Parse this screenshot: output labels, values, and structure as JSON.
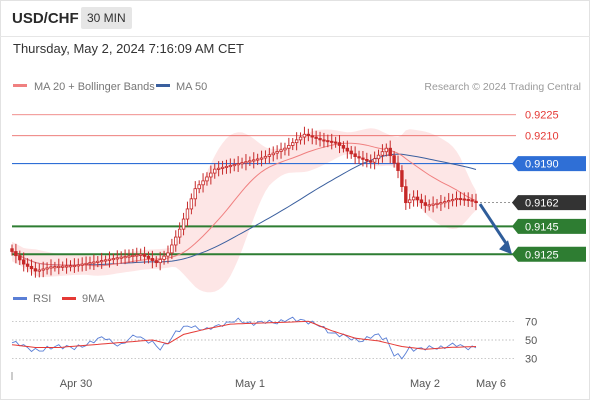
{
  "header": {
    "pair": "USD/CHF",
    "timeframe": "30 MIN",
    "datetime": "Thursday, May 2, 2024 7:16:09 AM CET"
  },
  "legend": {
    "ma20": "MA 20 + Bollinger Bands",
    "ma50": "MA 50",
    "copyright": "Research © 2024 Trading Central",
    "rsi": "RSI",
    "rsi_ma": "9MA"
  },
  "colors": {
    "ma20": "#f08080",
    "ma50": "#3a5f9e",
    "band_fill": "#fde2e2",
    "candle": "#c62828",
    "resistance": "#e53935",
    "support": "#2e7d32",
    "pivot": "#2f6fd6",
    "last_price": "#333333",
    "arrow": "#2f5d9a",
    "rsi": "#5a7fd6",
    "rsi_ma": "#e53935"
  },
  "chart_data": [
    {
      "type": "candlestick",
      "title": "USD/CHF",
      "ylim": [
        0.9108,
        0.9237
      ],
      "x_labels": [
        "Apr 30",
        "May 1",
        "May 2",
        "May 6"
      ],
      "levels": [
        {
          "value": 0.9225,
          "label": "0.9225",
          "kind": "resistance"
        },
        {
          "value": 0.921,
          "label": "0.9210",
          "kind": "resistance"
        },
        {
          "value": 0.919,
          "label": "0.9190",
          "kind": "pivot"
        },
        {
          "value": 0.9162,
          "label": "0.9162",
          "kind": "last"
        },
        {
          "value": 0.9145,
          "label": "0.9145",
          "kind": "support"
        },
        {
          "value": 0.9125,
          "label": "0.9125",
          "kind": "support"
        }
      ],
      "price_anchors": [
        {
          "i": 0,
          "v": 0.9127
        },
        {
          "i": 3,
          "v": 0.9118
        },
        {
          "i": 6,
          "v": 0.9113
        },
        {
          "i": 10,
          "v": 0.9116
        },
        {
          "i": 16,
          "v": 0.9117
        },
        {
          "i": 22,
          "v": 0.912
        },
        {
          "i": 28,
          "v": 0.9123
        },
        {
          "i": 33,
          "v": 0.9125
        },
        {
          "i": 37,
          "v": 0.9119
        },
        {
          "i": 40,
          "v": 0.9126
        },
        {
          "i": 43,
          "v": 0.9143
        },
        {
          "i": 47,
          "v": 0.9172
        },
        {
          "i": 52,
          "v": 0.9186
        },
        {
          "i": 58,
          "v": 0.919
        },
        {
          "i": 64,
          "v": 0.9194
        },
        {
          "i": 70,
          "v": 0.9201
        },
        {
          "i": 75,
          "v": 0.9211
        },
        {
          "i": 79,
          "v": 0.9207
        },
        {
          "i": 83,
          "v": 0.9205
        },
        {
          "i": 88,
          "v": 0.9195
        },
        {
          "i": 92,
          "v": 0.9191
        },
        {
          "i": 96,
          "v": 0.9201
        },
        {
          "i": 99,
          "v": 0.9185
        },
        {
          "i": 101,
          "v": 0.9162
        },
        {
          "i": 103,
          "v": 0.9166
        },
        {
          "i": 106,
          "v": 0.916
        },
        {
          "i": 110,
          "v": 0.9162
        },
        {
          "i": 114,
          "v": 0.9165
        },
        {
          "i": 117,
          "v": 0.9164
        },
        {
          "i": 119,
          "v": 0.9162
        }
      ],
      "forecast_arrow": {
        "from": 0.9161,
        "to": 0.9125
      }
    },
    {
      "type": "line",
      "title": "RSI",
      "ylim": [
        20,
        80
      ],
      "yticks": [
        70,
        50,
        30
      ],
      "series": [
        {
          "name": "RSI",
          "anchors": [
            {
              "i": 0,
              "v": 47
            },
            {
              "i": 4,
              "v": 42
            },
            {
              "i": 8,
              "v": 38
            },
            {
              "i": 12,
              "v": 45
            },
            {
              "i": 16,
              "v": 40
            },
            {
              "i": 20,
              "v": 48
            },
            {
              "i": 24,
              "v": 52
            },
            {
              "i": 28,
              "v": 44
            },
            {
              "i": 32,
              "v": 56
            },
            {
              "i": 36,
              "v": 46
            },
            {
              "i": 38,
              "v": 40
            },
            {
              "i": 42,
              "v": 58
            },
            {
              "i": 46,
              "v": 66
            },
            {
              "i": 50,
              "v": 60
            },
            {
              "i": 54,
              "v": 68
            },
            {
              "i": 58,
              "v": 70
            },
            {
              "i": 64,
              "v": 68
            },
            {
              "i": 70,
              "v": 71
            },
            {
              "i": 75,
              "v": 72
            },
            {
              "i": 80,
              "v": 62
            },
            {
              "i": 86,
              "v": 52
            },
            {
              "i": 90,
              "v": 50
            },
            {
              "i": 94,
              "v": 55
            },
            {
              "i": 96,
              "v": 52
            },
            {
              "i": 98,
              "v": 34
            },
            {
              "i": 100,
              "v": 30
            },
            {
              "i": 102,
              "v": 42
            },
            {
              "i": 106,
              "v": 40
            },
            {
              "i": 110,
              "v": 43
            },
            {
              "i": 114,
              "v": 44
            },
            {
              "i": 119,
              "v": 42
            }
          ]
        },
        {
          "name": "9MA",
          "anchors": [
            {
              "i": 0,
              "v": 45
            },
            {
              "i": 6,
              "v": 42
            },
            {
              "i": 12,
              "v": 42
            },
            {
              "i": 18,
              "v": 44
            },
            {
              "i": 24,
              "v": 46
            },
            {
              "i": 30,
              "v": 48
            },
            {
              "i": 36,
              "v": 50
            },
            {
              "i": 40,
              "v": 46
            },
            {
              "i": 44,
              "v": 56
            },
            {
              "i": 50,
              "v": 62
            },
            {
              "i": 56,
              "v": 67
            },
            {
              "i": 62,
              "v": 68
            },
            {
              "i": 70,
              "v": 69
            },
            {
              "i": 76,
              "v": 70
            },
            {
              "i": 82,
              "v": 60
            },
            {
              "i": 88,
              "v": 52
            },
            {
              "i": 94,
              "v": 49
            },
            {
              "i": 100,
              "v": 43
            },
            {
              "i": 106,
              "v": 40
            },
            {
              "i": 112,
              "v": 42
            },
            {
              "i": 119,
              "v": 43
            }
          ]
        }
      ]
    }
  ]
}
